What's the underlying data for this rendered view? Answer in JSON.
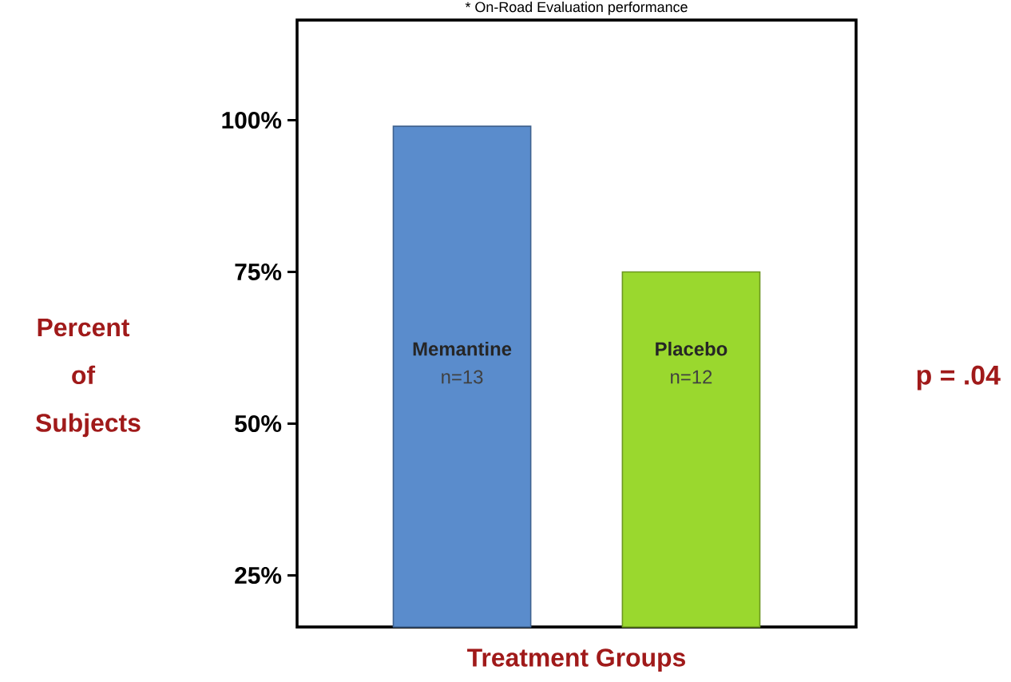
{
  "chart_data": {
    "type": "bar",
    "title": "* On-Road Evaluation performance",
    "xlabel": "Treatment Groups",
    "ylabel": "Percent of Subjects",
    "categories": [
      "Memantine",
      "Placebo"
    ],
    "values": [
      99,
      75
    ],
    "colors": [
      "#5a8ccc",
      "#9ad82e"
    ],
    "ylim": [
      16.5,
      116.5
    ],
    "yticks": [
      {
        "value": 25,
        "label": "25%"
      },
      {
        "value": 50,
        "label": "50%"
      },
      {
        "value": 75,
        "label": "75%"
      },
      {
        "value": 100,
        "label": "100%"
      }
    ],
    "grid": false,
    "annotations": [
      "n=13",
      "n=12",
      "p = .04"
    ]
  }
}
